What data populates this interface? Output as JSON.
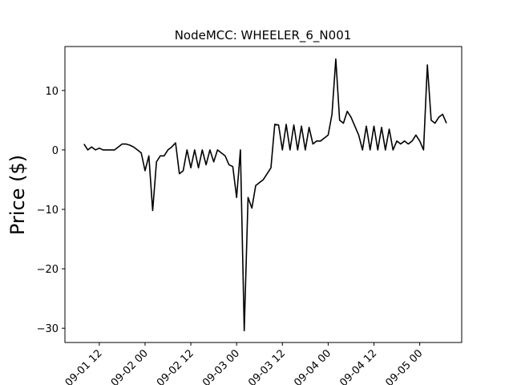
{
  "chart_data": {
    "type": "line",
    "title": "NodeMCC: WHEELER_6_N001",
    "y_label": "Price ($)",
    "x": [
      "09-01 08",
      "09-01 09",
      "09-01 10",
      "09-01 11",
      "09-01 12",
      "09-01 13",
      "09-01 14",
      "09-01 15",
      "09-01 16",
      "09-01 17",
      "09-01 18",
      "09-01 19",
      "09-01 20",
      "09-01 21",
      "09-01 22",
      "09-01 23",
      "09-02 00",
      "09-02 01",
      "09-02 02",
      "09-02 03",
      "09-02 04",
      "09-02 05",
      "09-02 06",
      "09-02 07",
      "09-02 08",
      "09-02 09",
      "09-02 10",
      "09-02 11",
      "09-02 12",
      "09-02 13",
      "09-02 14",
      "09-02 15",
      "09-02 16",
      "09-02 17",
      "09-02 18",
      "09-02 19",
      "09-02 20",
      "09-02 21",
      "09-02 22",
      "09-02 23",
      "09-03 00",
      "09-03 01",
      "09-03 02",
      "09-03 03",
      "09-03 04",
      "09-03 05",
      "09-03 06",
      "09-03 07",
      "09-03 08",
      "09-03 09",
      "09-03 10",
      "09-03 11",
      "09-03 12",
      "09-03 13",
      "09-03 14",
      "09-03 15",
      "09-03 16",
      "09-03 17",
      "09-03 18",
      "09-03 19",
      "09-03 20",
      "09-03 21",
      "09-03 22",
      "09-03 23",
      "09-04 00",
      "09-04 01",
      "09-04 02",
      "09-04 03",
      "09-04 04",
      "09-04 05",
      "09-04 06",
      "09-04 07",
      "09-04 08",
      "09-04 09",
      "09-04 10",
      "09-04 11",
      "09-04 12",
      "09-04 13",
      "09-04 14",
      "09-04 15",
      "09-04 16",
      "09-04 17",
      "09-04 18",
      "09-04 19",
      "09-04 20",
      "09-04 21",
      "09-04 22",
      "09-04 23",
      "09-05 00",
      "09-05 01",
      "09-05 02",
      "09-05 03",
      "09-05 04",
      "09-05 05",
      "09-05 06",
      "09-05 07"
    ],
    "series": [
      {
        "color": "#000000",
        "values": [
          1,
          0,
          0.5,
          0,
          0.3,
          0,
          0,
          0,
          0,
          0.5,
          1,
          1,
          0.8,
          0.5,
          0,
          -0.5,
          -3.5,
          -1,
          -10.2,
          -2,
          -1,
          -1,
          0,
          0.5,
          1.2,
          -4,
          -3.5,
          0,
          -3,
          0,
          -3,
          0,
          -2.5,
          0,
          -2,
          0,
          -0.5,
          -1,
          -2.5,
          -2.8,
          -8,
          0,
          -30.4,
          -8,
          -9.8,
          -6,
          -5.5,
          -5,
          -4,
          -3,
          4.3,
          4.2,
          0,
          4.3,
          0,
          4.2,
          0,
          4,
          0,
          3.8,
          1,
          1.5,
          1.5,
          2,
          2.5,
          6,
          15.3,
          5,
          4.5,
          6.5,
          5.5,
          4,
          2.5,
          0,
          4,
          0,
          4,
          0,
          3.8,
          0,
          3.5,
          0,
          1.5,
          1,
          1.5,
          1,
          1.5,
          2.5,
          1.5,
          0,
          14.3,
          5,
          4.5,
          5.5,
          6,
          4.5
        ]
      }
    ],
    "xlim": [
      "09-01 03",
      "09-05 11"
    ],
    "xticks": [
      "09-01 12",
      "09-02 00",
      "09-02 12",
      "09-03 00",
      "09-03 12",
      "09-04 00",
      "09-04 12",
      "09-05 00"
    ],
    "ylim": [
      -32.4,
      17.4
    ],
    "yticks": [
      {
        "value": -30,
        "label": "−30"
      },
      {
        "value": -20,
        "label": "−20"
      },
      {
        "value": -10,
        "label": "−10"
      },
      0,
      10
    ],
    "grid": false
  }
}
